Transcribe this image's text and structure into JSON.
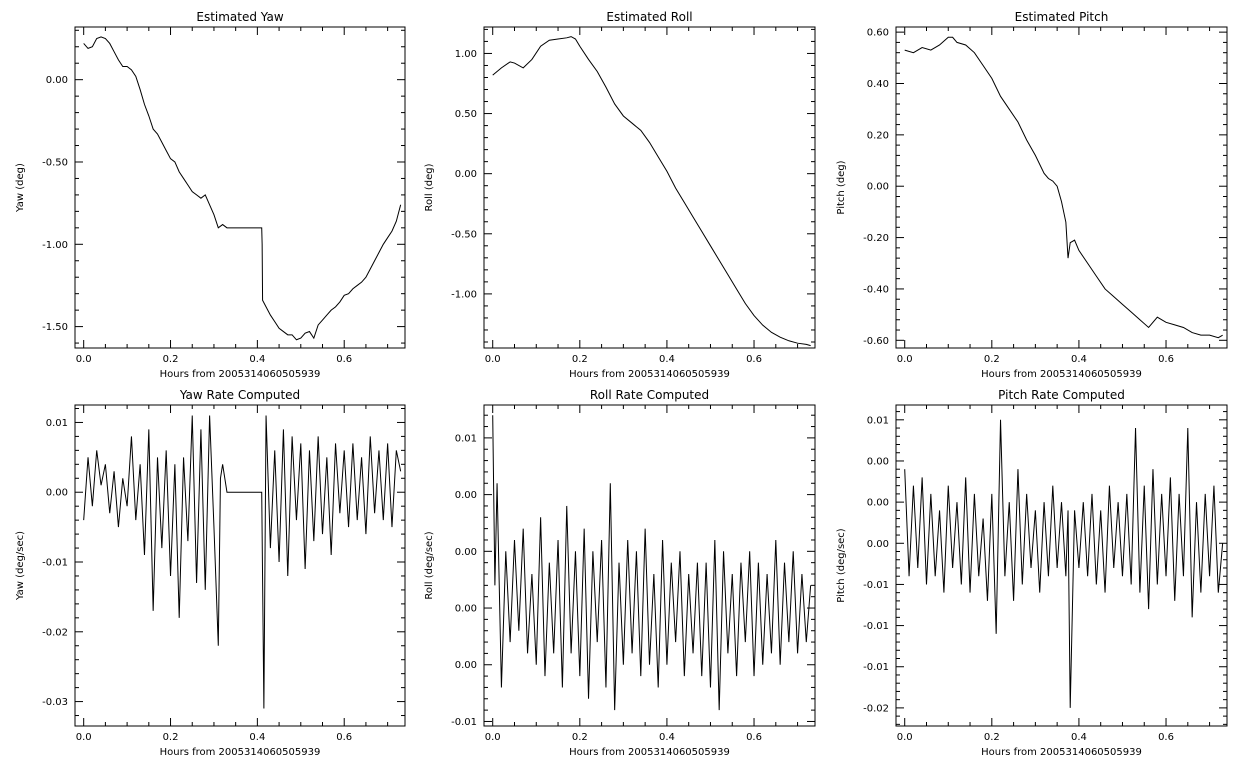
{
  "chart_data": [
    {
      "type": "line",
      "title": "Estimated Yaw",
      "xlabel": "Hours from 2005314060505939",
      "ylabel": "Yaw (deg)",
      "xlim": [
        -0.02,
        0.74
      ],
      "ylim": [
        -1.63,
        0.32
      ],
      "xticks": [
        0.0,
        0.2,
        0.4,
        0.6
      ],
      "xticklabels": [
        "0.0",
        "0.2",
        "0.4",
        "0.6"
      ],
      "yticks": [
        0.0,
        -0.5,
        -1.0,
        -1.5
      ],
      "yticklabels": [
        "0.00",
        "-0.50",
        "-1.00",
        "-1.50"
      ],
      "series": [
        {
          "x": [
            0.0,
            0.01,
            0.02,
            0.03,
            0.04,
            0.05,
            0.06,
            0.07,
            0.08,
            0.09,
            0.1,
            0.11,
            0.12,
            0.13,
            0.14,
            0.15,
            0.16,
            0.17,
            0.18,
            0.19,
            0.2,
            0.21,
            0.22,
            0.23,
            0.24,
            0.25,
            0.26,
            0.27,
            0.28,
            0.29,
            0.3,
            0.31,
            0.32,
            0.33,
            0.35,
            0.38,
            0.41,
            0.411,
            0.412,
            0.42,
            0.43,
            0.44,
            0.45,
            0.46,
            0.47,
            0.48,
            0.49,
            0.5,
            0.51,
            0.52,
            0.53,
            0.54,
            0.55,
            0.56,
            0.57,
            0.58,
            0.59,
            0.6,
            0.61,
            0.62,
            0.63,
            0.64,
            0.65,
            0.66,
            0.67,
            0.68,
            0.69,
            0.7,
            0.71,
            0.72,
            0.73
          ],
          "y": [
            0.22,
            0.19,
            0.2,
            0.25,
            0.26,
            0.25,
            0.22,
            0.17,
            0.12,
            0.08,
            0.08,
            0.06,
            0.02,
            -0.06,
            -0.15,
            -0.22,
            -0.3,
            -0.33,
            -0.38,
            -0.43,
            -0.48,
            -0.5,
            -0.56,
            -0.6,
            -0.64,
            -0.68,
            -0.7,
            -0.72,
            -0.7,
            -0.76,
            -0.82,
            -0.9,
            -0.88,
            -0.9,
            -0.9,
            -0.9,
            -0.9,
            -1.0,
            -1.34,
            -1.38,
            -1.43,
            -1.47,
            -1.51,
            -1.53,
            -1.55,
            -1.55,
            -1.58,
            -1.57,
            -1.54,
            -1.53,
            -1.57,
            -1.49,
            -1.46,
            -1.43,
            -1.4,
            -1.38,
            -1.35,
            -1.31,
            -1.3,
            -1.27,
            -1.25,
            -1.23,
            -1.2,
            -1.15,
            -1.1,
            -1.05,
            -1.0,
            -0.96,
            -0.92,
            -0.86,
            -0.76
          ]
        }
      ]
    },
    {
      "type": "line",
      "title": "Estimated Roll",
      "xlabel": "Hours from 2005314060505939",
      "ylabel": "Roll (deg)",
      "xlim": [
        -0.02,
        0.74
      ],
      "ylim": [
        -1.45,
        1.22
      ],
      "xticks": [
        0.0,
        0.2,
        0.4,
        0.6
      ],
      "xticklabels": [
        "0.0",
        "0.2",
        "0.4",
        "0.6"
      ],
      "yticks": [
        1.0,
        0.5,
        0.0,
        -0.5,
        -1.0
      ],
      "yticklabels": [
        "1.00",
        "0.50",
        "0.00",
        "-0.50",
        "-1.00"
      ],
      "series": [
        {
          "x": [
            0.0,
            0.02,
            0.04,
            0.05,
            0.07,
            0.09,
            0.11,
            0.13,
            0.15,
            0.17,
            0.18,
            0.19,
            0.2,
            0.22,
            0.24,
            0.26,
            0.28,
            0.3,
            0.32,
            0.34,
            0.36,
            0.38,
            0.4,
            0.42,
            0.44,
            0.46,
            0.48,
            0.5,
            0.52,
            0.54,
            0.56,
            0.58,
            0.6,
            0.62,
            0.64,
            0.66,
            0.68,
            0.7,
            0.72,
            0.73
          ],
          "y": [
            0.82,
            0.88,
            0.93,
            0.92,
            0.88,
            0.95,
            1.06,
            1.11,
            1.12,
            1.13,
            1.14,
            1.12,
            1.06,
            0.95,
            0.85,
            0.72,
            0.58,
            0.48,
            0.42,
            0.36,
            0.26,
            0.14,
            0.02,
            -0.12,
            -0.24,
            -0.36,
            -0.48,
            -0.6,
            -0.72,
            -0.84,
            -0.96,
            -1.08,
            -1.18,
            -1.26,
            -1.32,
            -1.36,
            -1.39,
            -1.41,
            -1.42,
            -1.43
          ]
        }
      ]
    },
    {
      "type": "line",
      "title": "Estimated Pitch",
      "xlabel": "Hours from 2005314060505939",
      "ylabel": "Pitch (deg)",
      "xlim": [
        -0.02,
        0.74
      ],
      "ylim": [
        -0.63,
        0.62
      ],
      "xticks": [
        0.0,
        0.2,
        0.4,
        0.6
      ],
      "xticklabels": [
        "0.0",
        "0.2",
        "0.4",
        "0.6"
      ],
      "yticks": [
        0.6,
        0.4,
        0.2,
        0.0,
        -0.2,
        -0.4,
        -0.6
      ],
      "yticklabels": [
        "0.60",
        "0.40",
        "0.20",
        "0.00",
        "-0.20",
        "-0.40",
        "-0.60"
      ],
      "series": [
        {
          "x": [
            0.0,
            0.02,
            0.04,
            0.06,
            0.08,
            0.1,
            0.11,
            0.12,
            0.14,
            0.16,
            0.18,
            0.2,
            0.22,
            0.24,
            0.26,
            0.28,
            0.3,
            0.32,
            0.33,
            0.34,
            0.35,
            0.36,
            0.37,
            0.375,
            0.38,
            0.39,
            0.4,
            0.42,
            0.44,
            0.46,
            0.48,
            0.5,
            0.52,
            0.54,
            0.56,
            0.58,
            0.6,
            0.62,
            0.64,
            0.66,
            0.68,
            0.7,
            0.72,
            0.73
          ],
          "y": [
            0.53,
            0.52,
            0.54,
            0.53,
            0.55,
            0.58,
            0.58,
            0.56,
            0.55,
            0.52,
            0.47,
            0.42,
            0.35,
            0.3,
            0.25,
            0.18,
            0.12,
            0.05,
            0.03,
            0.02,
            0.0,
            -0.06,
            -0.14,
            -0.28,
            -0.22,
            -0.21,
            -0.25,
            -0.3,
            -0.35,
            -0.4,
            -0.43,
            -0.46,
            -0.49,
            -0.52,
            -0.55,
            -0.51,
            -0.53,
            -0.54,
            -0.55,
            -0.57,
            -0.58,
            -0.58,
            -0.59,
            -0.58
          ]
        }
      ]
    },
    {
      "type": "line",
      "title": "Yaw Rate Computed",
      "xlabel": "Hours from 2005314060505939",
      "ylabel": "Yaw (deg/sec)",
      "xlim": [
        -0.02,
        0.74
      ],
      "ylim": [
        -0.0335,
        0.0125
      ],
      "xticks": [
        0.0,
        0.2,
        0.4,
        0.6
      ],
      "xticklabels": [
        "0.0",
        "0.2",
        "0.4",
        "0.6"
      ],
      "yticks": [
        0.01,
        0.0,
        -0.01,
        -0.02,
        -0.03
      ],
      "yticklabels": [
        "0.01",
        "0.00",
        "-0.01",
        "-0.02",
        "-0.03"
      ],
      "series": [
        {
          "x": [
            0.0,
            0.01,
            0.02,
            0.03,
            0.04,
            0.05,
            0.06,
            0.07,
            0.08,
            0.09,
            0.1,
            0.11,
            0.12,
            0.13,
            0.14,
            0.15,
            0.16,
            0.17,
            0.18,
            0.19,
            0.2,
            0.21,
            0.22,
            0.23,
            0.24,
            0.25,
            0.26,
            0.27,
            0.28,
            0.29,
            0.3,
            0.31,
            0.315,
            0.32,
            0.33,
            0.35,
            0.38,
            0.41,
            0.415,
            0.42,
            0.43,
            0.44,
            0.45,
            0.46,
            0.47,
            0.48,
            0.49,
            0.5,
            0.51,
            0.52,
            0.53,
            0.54,
            0.55,
            0.56,
            0.57,
            0.58,
            0.59,
            0.6,
            0.61,
            0.62,
            0.63,
            0.64,
            0.65,
            0.66,
            0.67,
            0.68,
            0.69,
            0.7,
            0.71,
            0.72,
            0.73
          ],
          "y": [
            -0.004,
            0.005,
            -0.002,
            0.006,
            0.001,
            0.004,
            -0.003,
            0.003,
            -0.005,
            0.002,
            -0.002,
            0.008,
            -0.004,
            0.004,
            -0.009,
            0.009,
            -0.017,
            0.005,
            -0.008,
            0.006,
            -0.012,
            0.004,
            -0.018,
            0.005,
            -0.007,
            0.011,
            -0.013,
            0.009,
            -0.014,
            0.011,
            -0.005,
            -0.022,
            0.002,
            0.004,
            0.0,
            0.0,
            0.0,
            0.0,
            -0.031,
            0.011,
            -0.008,
            0.006,
            -0.01,
            0.009,
            -0.012,
            0.008,
            -0.004,
            0.007,
            -0.011,
            0.006,
            -0.007,
            0.008,
            -0.006,
            0.005,
            -0.009,
            0.007,
            -0.003,
            0.006,
            -0.005,
            0.007,
            -0.004,
            0.005,
            -0.006,
            0.008,
            -0.003,
            0.006,
            -0.004,
            0.007,
            -0.005,
            0.006,
            0.003
          ]
        }
      ]
    },
    {
      "type": "line",
      "title": "Roll Rate Computed",
      "xlabel": "Hours from 2005314060505939",
      "ylabel": "Roll (deg/sec)",
      "xlim": [
        -0.02,
        0.74
      ],
      "ylim": [
        -0.0104,
        0.0179
      ],
      "xticks": [
        0.0,
        0.2,
        0.4,
        0.6
      ],
      "xticklabels": [
        "0.0",
        "0.2",
        "0.4",
        "0.6"
      ],
      "yticks": [
        0.015,
        0.01,
        0.005,
        0.0,
        -0.005,
        -0.01
      ],
      "yticklabels": [
        "0.01",
        "0.00",
        "0.00",
        "0.00",
        "0.00",
        "-0.01"
      ],
      "series": [
        {
          "x": [
            0.0,
            0.005,
            0.01,
            0.02,
            0.03,
            0.04,
            0.05,
            0.06,
            0.07,
            0.08,
            0.09,
            0.1,
            0.11,
            0.12,
            0.13,
            0.14,
            0.15,
            0.16,
            0.17,
            0.18,
            0.19,
            0.2,
            0.21,
            0.22,
            0.23,
            0.24,
            0.25,
            0.26,
            0.27,
            0.28,
            0.29,
            0.3,
            0.31,
            0.32,
            0.33,
            0.34,
            0.35,
            0.36,
            0.37,
            0.38,
            0.39,
            0.4,
            0.41,
            0.42,
            0.43,
            0.44,
            0.45,
            0.46,
            0.47,
            0.48,
            0.49,
            0.5,
            0.51,
            0.52,
            0.53,
            0.54,
            0.55,
            0.56,
            0.57,
            0.58,
            0.59,
            0.6,
            0.61,
            0.62,
            0.63,
            0.64,
            0.65,
            0.66,
            0.67,
            0.68,
            0.69,
            0.7,
            0.71,
            0.72,
            0.73
          ],
          "y": [
            0.017,
            0.002,
            0.011,
            -0.007,
            0.005,
            -0.003,
            0.006,
            -0.002,
            0.007,
            -0.004,
            0.003,
            -0.005,
            0.008,
            -0.006,
            0.004,
            -0.004,
            0.006,
            -0.007,
            0.009,
            -0.004,
            0.005,
            -0.006,
            0.007,
            -0.008,
            0.005,
            -0.003,
            0.006,
            -0.007,
            0.011,
            -0.009,
            0.004,
            -0.005,
            0.006,
            -0.004,
            0.005,
            -0.006,
            0.007,
            -0.005,
            0.003,
            -0.007,
            0.006,
            -0.005,
            0.004,
            -0.003,
            0.005,
            -0.006,
            0.003,
            -0.004,
            0.004,
            -0.006,
            0.004,
            -0.007,
            0.006,
            -0.009,
            0.005,
            -0.004,
            0.003,
            -0.006,
            0.004,
            -0.003,
            0.005,
            -0.006,
            0.004,
            -0.005,
            0.003,
            -0.004,
            0.006,
            -0.005,
            0.004,
            -0.003,
            0.005,
            -0.004,
            0.003,
            -0.003,
            0.002
          ]
        }
      ]
    },
    {
      "type": "line",
      "title": "Pitch Rate Computed",
      "xlabel": "Hours from 2005314060505939",
      "ylabel": "Pitch (deg/sec)",
      "xlim": [
        -0.02,
        0.74
      ],
      "ylim": [
        -0.0222,
        0.0168
      ],
      "xticks": [
        0.0,
        0.2,
        0.4,
        0.6
      ],
      "xticklabels": [
        "0.0",
        "0.2",
        "0.4",
        "0.6"
      ],
      "yticks": [
        0.015,
        0.01,
        0.005,
        0.0,
        -0.005,
        -0.01,
        -0.015,
        -0.02
      ],
      "yticklabels": [
        "0.01",
        "0.00",
        "0.00",
        "0.00",
        "-0.01",
        "-0.01",
        "-0.01",
        "-0.02"
      ],
      "series": [
        {
          "x": [
            0.0,
            0.01,
            0.02,
            0.03,
            0.04,
            0.05,
            0.06,
            0.07,
            0.08,
            0.09,
            0.1,
            0.11,
            0.12,
            0.13,
            0.14,
            0.15,
            0.16,
            0.17,
            0.18,
            0.19,
            0.2,
            0.21,
            0.22,
            0.23,
            0.24,
            0.25,
            0.26,
            0.27,
            0.28,
            0.29,
            0.3,
            0.31,
            0.32,
            0.33,
            0.34,
            0.35,
            0.36,
            0.37,
            0.375,
            0.38,
            0.39,
            0.4,
            0.41,
            0.42,
            0.43,
            0.44,
            0.45,
            0.46,
            0.47,
            0.48,
            0.49,
            0.5,
            0.51,
            0.52,
            0.53,
            0.54,
            0.55,
            0.56,
            0.57,
            0.58,
            0.59,
            0.6,
            0.61,
            0.62,
            0.63,
            0.64,
            0.65,
            0.66,
            0.67,
            0.68,
            0.69,
            0.7,
            0.71,
            0.72,
            0.73
          ],
          "y": [
            0.009,
            -0.004,
            0.007,
            -0.003,
            0.008,
            -0.005,
            0.006,
            -0.004,
            0.004,
            -0.006,
            0.007,
            -0.003,
            0.005,
            -0.005,
            0.008,
            -0.006,
            0.006,
            -0.004,
            0.003,
            -0.007,
            0.006,
            -0.011,
            0.015,
            -0.004,
            0.005,
            -0.007,
            0.009,
            -0.005,
            0.006,
            -0.003,
            0.004,
            -0.006,
            0.005,
            -0.004,
            0.007,
            -0.003,
            0.005,
            -0.004,
            0.004,
            -0.02,
            0.004,
            -0.003,
            0.005,
            -0.004,
            0.006,
            -0.005,
            0.004,
            -0.006,
            0.007,
            -0.003,
            0.005,
            -0.004,
            0.006,
            -0.005,
            0.014,
            -0.006,
            0.007,
            -0.008,
            0.009,
            -0.005,
            0.006,
            -0.004,
            0.008,
            -0.007,
            0.006,
            -0.004,
            0.014,
            -0.009,
            0.005,
            -0.006,
            0.006,
            -0.004,
            0.007,
            -0.006,
            0.0
          ]
        }
      ]
    }
  ]
}
